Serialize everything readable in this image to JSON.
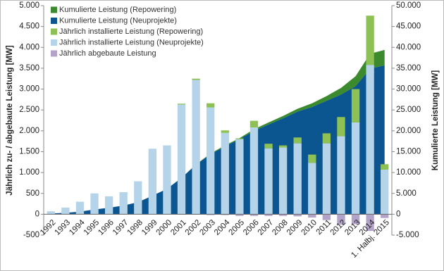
{
  "chart_data": {
    "type": "combo",
    "y_label": "Jährlich zu- / abgebaute Leistung [MW]",
    "y2_label": "Kumulierte Leistung [MW]",
    "categories": [
      "1992",
      "1993",
      "1994",
      "1995",
      "1996",
      "1997",
      "1998",
      "1999",
      "2000",
      "2001",
      "2002",
      "2003",
      "2004",
      "2005",
      "2006",
      "2007",
      "2008",
      "2009",
      "2010",
      "2011",
      "2012",
      "2013",
      "2014",
      "1. Halbj. 2015"
    ],
    "ylim": [
      -500,
      5000
    ],
    "yticks": [
      {
        "value": 5000,
        "label": "5.000"
      },
      {
        "value": 4500,
        "label": "4.500"
      },
      {
        "value": 4000,
        "label": "4.000"
      },
      {
        "value": 3500,
        "label": "3.500"
      },
      {
        "value": 3000,
        "label": "3.000"
      },
      {
        "value": 2500,
        "label": "2.500"
      },
      {
        "value": 2000,
        "label": "2.000"
      },
      {
        "value": 1500,
        "label": "1.500"
      },
      {
        "value": 1000,
        "label": "1.000"
      },
      500,
      0,
      -500
    ],
    "y2lim": [
      -5000,
      50000
    ],
    "y2ticks": [
      {
        "value": 50000,
        "label": "50.000"
      },
      {
        "value": 45000,
        "label": "45.000"
      },
      {
        "value": 40000,
        "label": "40.000"
      },
      {
        "value": 35000,
        "label": "35.000"
      },
      {
        "value": 30000,
        "label": "30.000"
      },
      {
        "value": 25000,
        "label": "25.000"
      },
      {
        "value": 20000,
        "label": "20.000"
      },
      {
        "value": 15000,
        "label": "15.000"
      },
      {
        "value": 10000,
        "label": "10.000"
      },
      {
        "value": 5000,
        "label": "5.000"
      },
      0,
      {
        "value": -5000,
        "label": "-5.000"
      }
    ],
    "legend": "top-left",
    "series": [
      {
        "name": "Kumulierte Leistung (Repowering)",
        "type": "area",
        "axis": "y2",
        "stack": "cum",
        "color": "#3b8a2e",
        "values": [
          0,
          0,
          0,
          0,
          0,
          0,
          0,
          0,
          0,
          20,
          50,
          150,
          210,
          230,
          390,
          500,
          550,
          690,
          890,
          1130,
          1590,
          2390,
          3570,
          3700
        ]
      },
      {
        "name": "Kumulierte Leistung (Neuprojekte)",
        "type": "area",
        "axis": "y2",
        "stack": "cum",
        "color": "#0b5590",
        "values": [
          180,
          330,
          630,
          1130,
          1560,
          2090,
          2880,
          4450,
          6100,
          8710,
          11900,
          14400,
          16300,
          18000,
          20000,
          21500,
          23000,
          24600,
          25700,
          27200,
          28700,
          30700,
          34900,
          35700
        ]
      },
      {
        "name": "Jährlich installierte Leistung (Repowering)",
        "type": "bar",
        "stack": "year",
        "color": "#8dc153",
        "values": [
          0,
          0,
          0,
          0,
          0,
          0,
          0,
          0,
          0,
          20,
          30,
          100,
          60,
          20,
          160,
          110,
          50,
          140,
          200,
          240,
          460,
          800,
          1180,
          130
        ]
      },
      {
        "name": "Jährlich installierte Leistung (Neuprojekte)",
        "type": "bar",
        "stack": "year",
        "color": "#b5d4ea",
        "values": [
          70,
          160,
          300,
          500,
          430,
          530,
          790,
          1570,
          1650,
          2630,
          3220,
          2560,
          1950,
          1800,
          2080,
          1580,
          1600,
          1700,
          1230,
          1700,
          1870,
          2200,
          3580,
          1070
        ]
      },
      {
        "name": "Jährlich abgebaute Leistung",
        "type": "bar",
        "stack": "year",
        "color": "#b4a3c9",
        "values": [
          0,
          0,
          0,
          0,
          0,
          0,
          0,
          0,
          0,
          -10,
          -10,
          -20,
          -20,
          -40,
          -40,
          -40,
          -40,
          -50,
          -80,
          -140,
          -250,
          -240,
          -400,
          -90
        ]
      }
    ]
  }
}
